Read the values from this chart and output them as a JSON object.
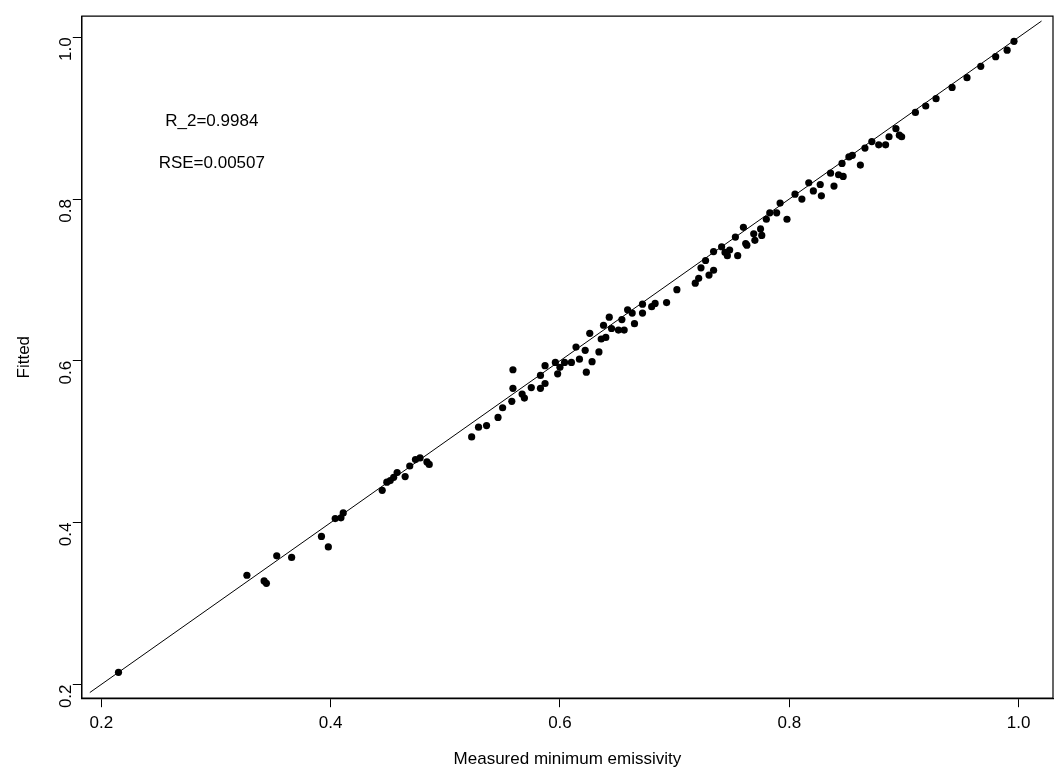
{
  "chart_data": {
    "type": "scatter",
    "xlabel": "Measured minimum emissivity",
    "ylabel": "Fitted",
    "xlim": [
      0.183,
      1.03
    ],
    "ylim": [
      0.183,
      1.026
    ],
    "xticks": [
      {
        "value": 0.2,
        "label": "0.2"
      },
      {
        "value": 0.4,
        "label": "0.4"
      },
      {
        "value": 0.6,
        "label": "0.6"
      },
      {
        "value": 0.8,
        "label": "0.8"
      },
      {
        "value": 1,
        "label": "1.0"
      }
    ],
    "yticks": [
      {
        "value": 0.2,
        "label": "0.2"
      },
      {
        "value": 0.4,
        "label": "0.4"
      },
      {
        "value": 0.6,
        "label": "0.6"
      },
      {
        "value": 0.8,
        "label": "0.8"
      },
      {
        "value": 1,
        "label": "1.0"
      }
    ],
    "grid": false,
    "legend": false,
    "annotations": [
      "R_2=0.9984",
      "RSE=0.00507"
    ],
    "series": [
      {
        "marker": "circle",
        "color": "#000000",
        "x": [
          0.215,
          0.327,
          0.342,
          0.344,
          0.353,
          0.366,
          0.392,
          0.398,
          0.404,
          0.409,
          0.411,
          0.445,
          0.449,
          0.452,
          0.455,
          0.458,
          0.465,
          0.469,
          0.474,
          0.478,
          0.484,
          0.486,
          0.523,
          0.529,
          0.536,
          0.546,
          0.55,
          0.558,
          0.559,
          0.559,
          0.567,
          0.569,
          0.575,
          0.583,
          0.583,
          0.587,
          0.587,
          0.596,
          0.598,
          0.6,
          0.604,
          0.61,
          0.614,
          0.617,
          0.623,
          0.622,
          0.626,
          0.628,
          0.634,
          0.636,
          0.64,
          0.643,
          0.638,
          0.645,
          0.651,
          0.656,
          0.654,
          0.659,
          0.663,
          0.665,
          0.672,
          0.672,
          0.68,
          0.683,
          0.693,
          0.702,
          0.718,
          0.721,
          0.723,
          0.727,
          0.73,
          0.734,
          0.734,
          0.741,
          0.744,
          0.746,
          0.748,
          0.753,
          0.755,
          0.76,
          0.762,
          0.763,
          0.769,
          0.77,
          0.775,
          0.776,
          0.78,
          0.783,
          0.789,
          0.792,
          0.798,
          0.805,
          0.811,
          0.817,
          0.821,
          0.827,
          0.828,
          0.836,
          0.839,
          0.843,
          0.846,
          0.847,
          0.852,
          0.855,
          0.862,
          0.866,
          0.872,
          0.878,
          0.884,
          0.887,
          0.893,
          0.896,
          0.898,
          0.91,
          0.919,
          0.928,
          0.942,
          0.955,
          0.967,
          0.98,
          0.99,
          0.996
        ],
        "values": [
          0.215,
          0.335,
          0.328,
          0.325,
          0.359,
          0.357,
          0.383,
          0.37,
          0.405,
          0.406,
          0.412,
          0.44,
          0.45,
          0.452,
          0.456,
          0.462,
          0.457,
          0.47,
          0.478,
          0.48,
          0.475,
          0.472,
          0.506,
          0.518,
          0.52,
          0.53,
          0.542,
          0.55,
          0.589,
          0.566,
          0.559,
          0.554,
          0.567,
          0.566,
          0.582,
          0.572,
          0.594,
          0.598,
          0.584,
          0.592,
          0.598,
          0.598,
          0.617,
          0.602,
          0.586,
          0.613,
          0.634,
          0.599,
          0.611,
          0.627,
          0.629,
          0.654,
          0.644,
          0.64,
          0.638,
          0.638,
          0.651,
          0.663,
          0.659,
          0.646,
          0.659,
          0.67,
          0.667,
          0.671,
          0.672,
          0.688,
          0.696,
          0.702,
          0.715,
          0.724,
          0.706,
          0.712,
          0.735,
          0.741,
          0.734,
          0.73,
          0.737,
          0.753,
          0.73,
          0.765,
          0.745,
          0.743,
          0.757,
          0.749,
          0.763,
          0.755,
          0.775,
          0.783,
          0.783,
          0.795,
          0.775,
          0.806,
          0.8,
          0.82,
          0.81,
          0.818,
          0.804,
          0.832,
          0.816,
          0.83,
          0.844,
          0.828,
          0.852,
          0.854,
          0.842,
          0.863,
          0.871,
          0.867,
          0.867,
          0.877,
          0.887,
          0.879,
          0.877,
          0.907,
          0.915,
          0.924,
          0.938,
          0.95,
          0.964,
          0.976,
          0.984,
          0.995
        ]
      },
      {
        "type": "line",
        "color": "#000000",
        "x": [
          0.19,
          1.02
        ],
        "values": [
          0.19,
          1.02
        ]
      }
    ]
  }
}
